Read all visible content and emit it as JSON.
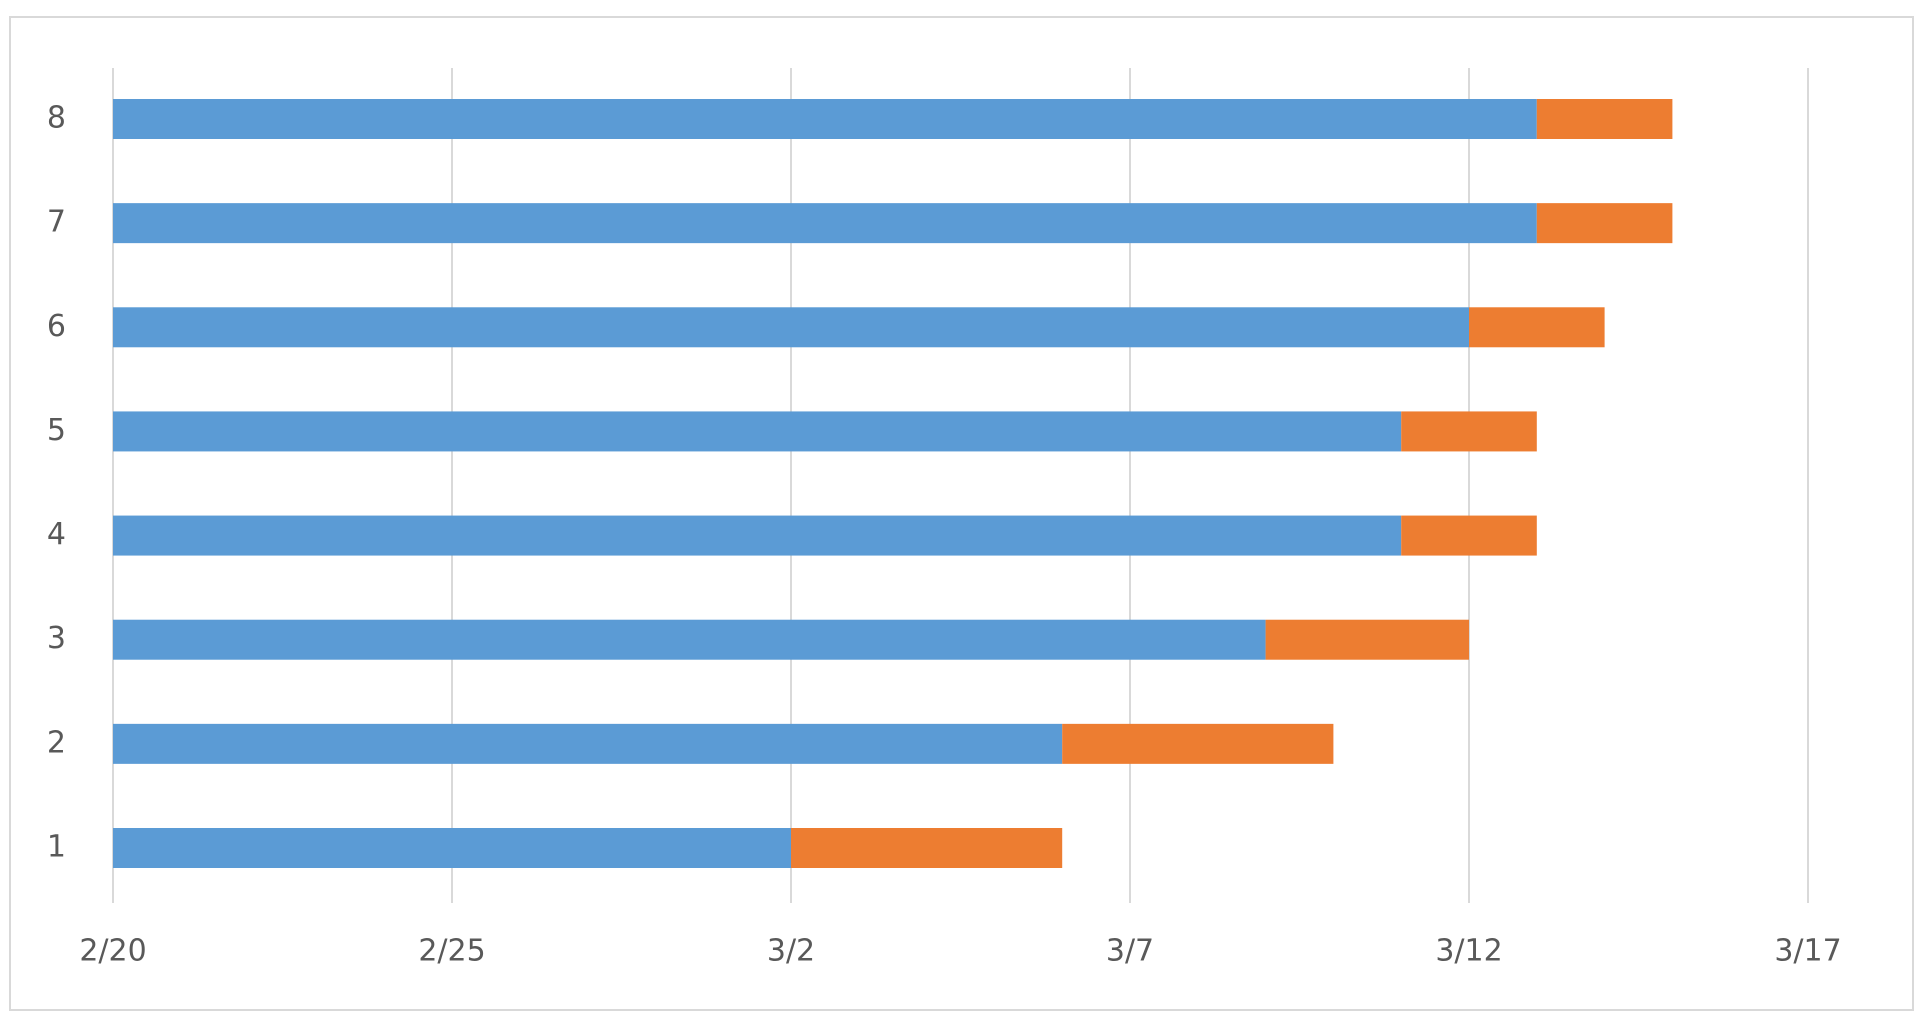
{
  "chart_data": {
    "type": "stacked-bar-horizontal",
    "categories": [
      "1",
      "2",
      "3",
      "4",
      "5",
      "6",
      "7",
      "8"
    ],
    "series": [
      {
        "color": "#5b9bd5",
        "values": [
          10,
          14,
          17,
          19,
          19,
          20,
          21,
          21
        ]
      },
      {
        "color": "#ed7d31",
        "values": [
          4,
          4,
          3,
          2,
          2,
          2,
          2,
          2
        ]
      }
    ],
    "xlim": [
      0,
      25
    ],
    "xticks": [
      {
        "value": 0,
        "label": "2/20"
      },
      {
        "value": 5,
        "label": "2/25"
      },
      {
        "value": 10,
        "label": "3/2"
      },
      {
        "value": 15,
        "label": "3/7"
      },
      {
        "value": 20,
        "label": "3/12"
      },
      {
        "value": 25,
        "label": "3/17"
      }
    ],
    "grid": true
  }
}
